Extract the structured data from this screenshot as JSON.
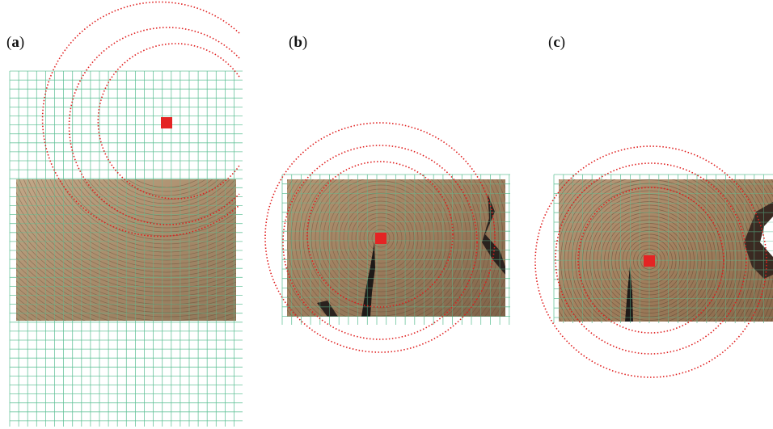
{
  "panels": [
    {
      "label_open": "(",
      "letter": "a",
      "label_close": ")"
    },
    {
      "label_open": "(",
      "letter": "b",
      "label_close": ")"
    },
    {
      "label_open": "(",
      "letter": "c",
      "label_close": ")"
    }
  ],
  "colors": {
    "grid": "#5cbf94",
    "rings": "#e01e1e",
    "pith_marker": "#e42424",
    "wood_light": "#b89c7a",
    "wood_dark": "#7a6048",
    "crack": "#1e1a18"
  }
}
